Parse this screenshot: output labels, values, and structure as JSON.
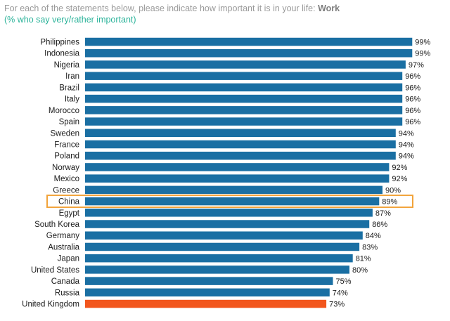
{
  "header": {
    "question": "For each of the statements below, please indicate how important it is in your life:",
    "topic": "Work",
    "subtitle": "(% who say very/rather important)"
  },
  "colors": {
    "bar": "#1a6fa3",
    "highlight_bar": "#f2561d",
    "highlight_box": "#f2a33a",
    "label": "#1a1a1a"
  },
  "chart_data": {
    "type": "bar",
    "orientation": "horizontal",
    "value_suffix": "%",
    "xlim": [
      0,
      100
    ],
    "grid": false,
    "categories": [
      "Philippines",
      "Indonesia",
      "Nigeria",
      "Iran",
      "Brazil",
      "Italy",
      "Morocco",
      "Spain",
      "Sweden",
      "France",
      "Poland",
      "Norway",
      "Mexico",
      "Greece",
      "China",
      "Egypt",
      "South Korea",
      "Germany",
      "Australia",
      "Japan",
      "United States",
      "Canada",
      "Russia",
      "United Kingdom"
    ],
    "values": [
      99,
      99,
      97,
      96,
      96,
      96,
      96,
      96,
      94,
      94,
      94,
      92,
      92,
      90,
      89,
      87,
      86,
      84,
      83,
      81,
      80,
      75,
      74,
      73
    ],
    "highlighted_bar": "United Kingdom",
    "boxed_category": "China"
  }
}
